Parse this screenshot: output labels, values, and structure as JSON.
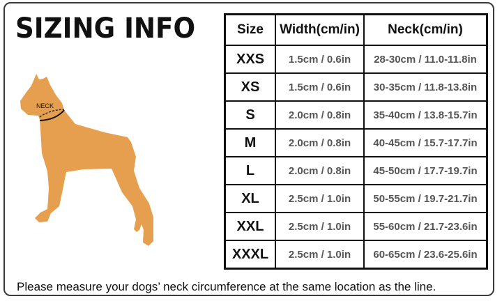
{
  "title": "SIZING INFO",
  "illustration": {
    "neck_label": "NECK",
    "fill_color": "#E69F4E"
  },
  "table": {
    "headers": [
      "Size",
      "Width(cm/in)",
      "Neck(cm/in)"
    ],
    "rows": [
      [
        "XXS",
        "1.5cm / 0.6in",
        "28-30cm / 11.0-11.8in"
      ],
      [
        "XS",
        "1.5cm / 0.6in",
        "30-35cm / 11.8-13.8in"
      ],
      [
        "S",
        "2.0cm / 0.8in",
        "35-40cm / 13.8-15.7in"
      ],
      [
        "M",
        "2.0cm / 0.8in",
        "40-45cm / 15.7-17.7in"
      ],
      [
        "L",
        "2.0cm / 0.8in",
        "45-50cm / 17.7-19.7in"
      ],
      [
        "XL",
        "2.5cm / 1.0in",
        "50-55cm / 19.7-21.7in"
      ],
      [
        "XXL",
        "2.5cm / 1.0in",
        "55-60cm / 21.7-23.6in"
      ],
      [
        "XXXL",
        "2.5cm / 1.0in",
        "60-65cm / 23.6-25.6in"
      ]
    ]
  },
  "footer": "Please measure your dogs’  neck circumference at the same location as the line."
}
